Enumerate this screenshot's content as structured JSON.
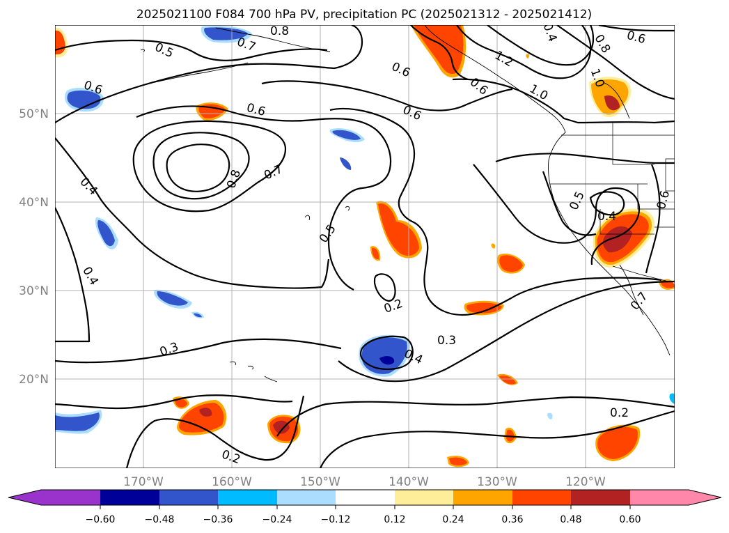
{
  "title": "2025021100 F084 700 hPa PV, precipitation PC (2025021312 - 2025021412)",
  "lat_labels": [
    "50°N",
    "40°N",
    "30°N",
    "20°N"
  ],
  "lon_labels": [
    "170°W",
    "160°W",
    "150°W",
    "140°W",
    "130°W",
    "120°W"
  ],
  "colorbar": {
    "tick_labels": [
      "−0.60",
      "−0.48",
      "−0.36",
      "−0.24",
      "−0.12",
      "0.12",
      "0.24",
      "0.36",
      "0.48",
      "0.60"
    ],
    "colors": {
      "lt_m060": "#9933cc",
      "m060_m048": "#000099",
      "m048_m036": "#3355cc",
      "m036_m024": "#00bbff",
      "m024_m012": "#aaddff",
      "m012_012": "#ffffff",
      "p012_024": "#ffee99",
      "p024_036": "#ffa500",
      "p036_048": "#ff4400",
      "p048_060": "#b22222",
      "gt_060": "#ff88aa"
    }
  },
  "contour_labels": [
    "0.8",
    "0.5",
    "0.6",
    "0.6",
    "0.6",
    "0.6",
    "1.2",
    "1.0",
    "0.7",
    "0.8",
    "0.8",
    "0.4",
    "0.4",
    "0.5",
    "0.2",
    "0.3",
    "0.4",
    "0.3",
    "0.2",
    "0.2",
    "0.6",
    "0.4",
    "0.7",
    "1.0",
    "0.5",
    "0.4",
    "0.6",
    "0.7",
    "0.6"
  ]
}
